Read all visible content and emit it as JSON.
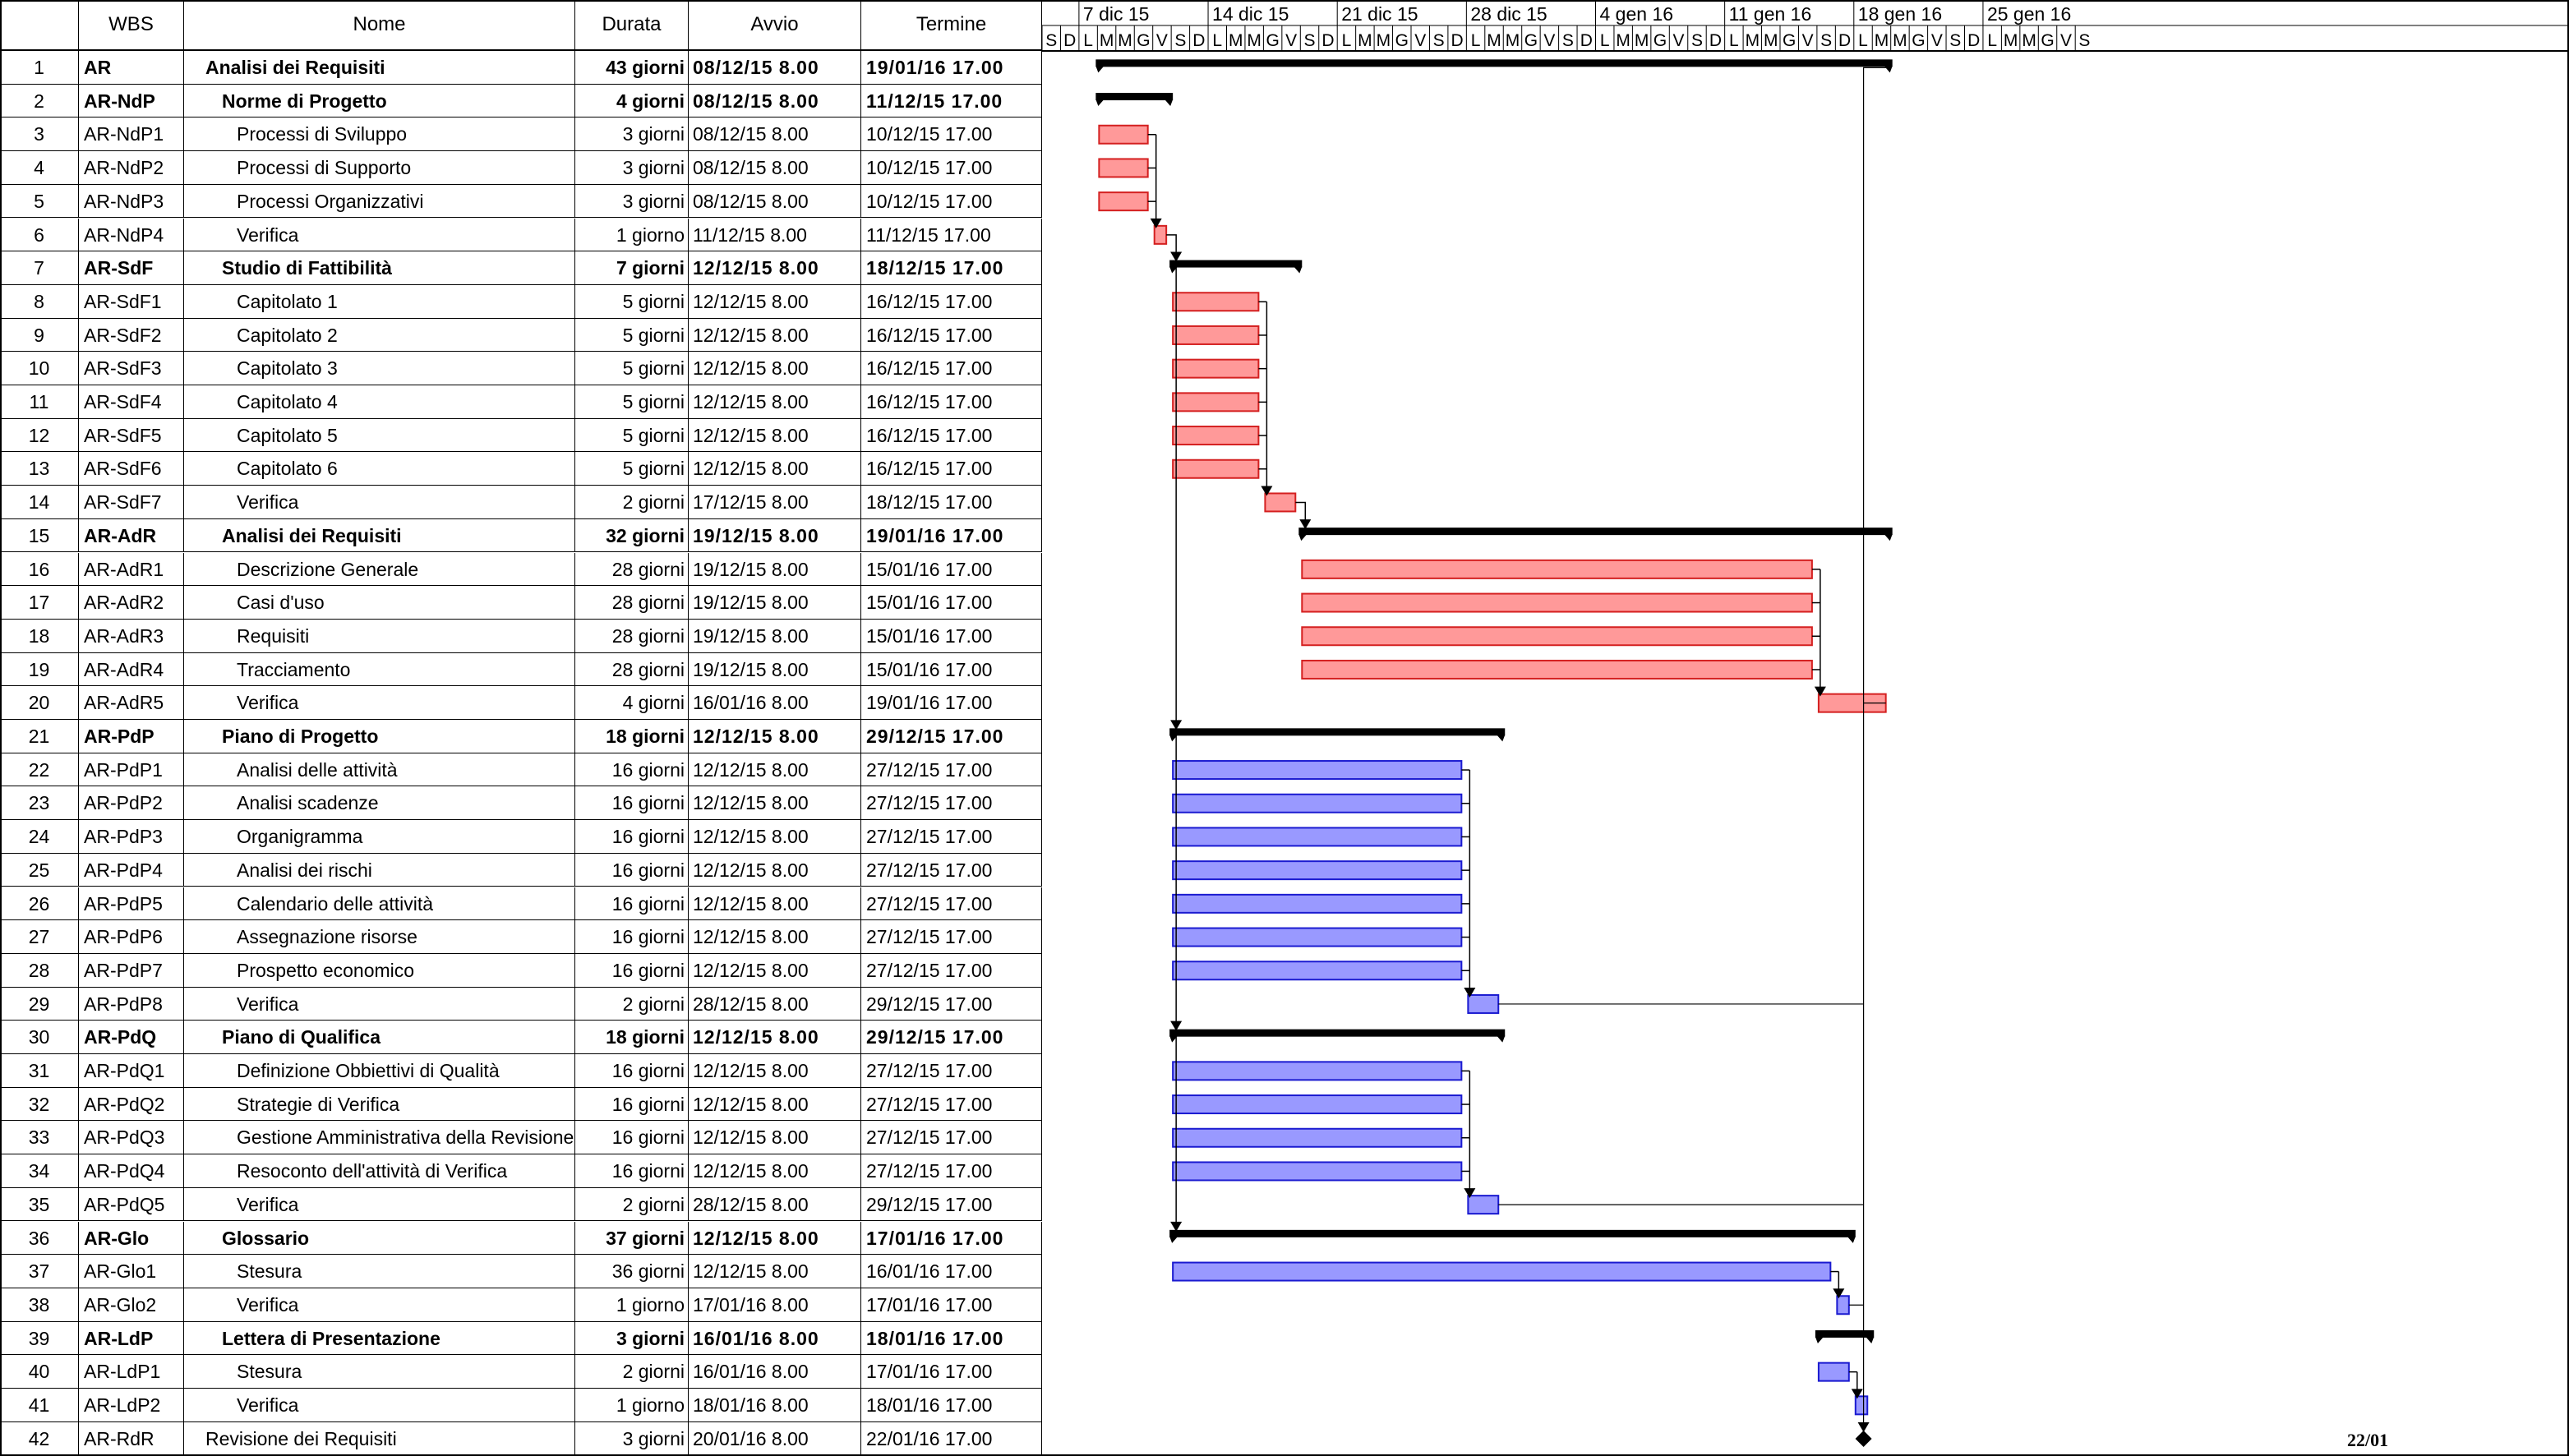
{
  "table": {
    "headers": {
      "num": "",
      "wbs": "WBS",
      "name": "Nome",
      "duration": "Durata",
      "start": "Avvio",
      "end": "Termine"
    },
    "rows": [
      {
        "num": "1",
        "wbs": "AR",
        "name": "Analisi dei Requisiti",
        "dur": "43 giorni",
        "start": "08/12/15 8.00",
        "end": "19/01/16 17.00",
        "summary": true,
        "indent": 0
      },
      {
        "num": "2",
        "wbs": "AR-NdP",
        "name": "Norme di Progetto",
        "dur": "4 giorni",
        "start": "08/12/15 8.00",
        "end": "11/12/15 17.00",
        "summary": true,
        "indent": 1
      },
      {
        "num": "3",
        "wbs": "AR-NdP1",
        "name": "Processi di Sviluppo",
        "dur": "3 giorni",
        "start": "08/12/15 8.00",
        "end": "10/12/15 17.00",
        "summary": false,
        "indent": 2
      },
      {
        "num": "4",
        "wbs": "AR-NdP2",
        "name": "Processi di Supporto",
        "dur": "3 giorni",
        "start": "08/12/15 8.00",
        "end": "10/12/15 17.00",
        "summary": false,
        "indent": 2
      },
      {
        "num": "5",
        "wbs": "AR-NdP3",
        "name": "Processi Organizzativi",
        "dur": "3 giorni",
        "start": "08/12/15 8.00",
        "end": "10/12/15 17.00",
        "summary": false,
        "indent": 2
      },
      {
        "num": "6",
        "wbs": "AR-NdP4",
        "name": "Verifica",
        "dur": "1 giorno",
        "start": "11/12/15 8.00",
        "end": "11/12/15 17.00",
        "summary": false,
        "indent": 2
      },
      {
        "num": "7",
        "wbs": "AR-SdF",
        "name": "Studio di Fattibilità",
        "dur": "7 giorni",
        "start": "12/12/15 8.00",
        "end": "18/12/15 17.00",
        "summary": true,
        "indent": 1
      },
      {
        "num": "8",
        "wbs": "AR-SdF1",
        "name": "Capitolato 1",
        "dur": "5 giorni",
        "start": "12/12/15 8.00",
        "end": "16/12/15 17.00",
        "summary": false,
        "indent": 2
      },
      {
        "num": "9",
        "wbs": "AR-SdF2",
        "name": "Capitolato 2",
        "dur": "5 giorni",
        "start": "12/12/15 8.00",
        "end": "16/12/15 17.00",
        "summary": false,
        "indent": 2
      },
      {
        "num": "10",
        "wbs": "AR-SdF3",
        "name": "Capitolato 3",
        "dur": "5 giorni",
        "start": "12/12/15 8.00",
        "end": "16/12/15 17.00",
        "summary": false,
        "indent": 2
      },
      {
        "num": "11",
        "wbs": "AR-SdF4",
        "name": "Capitolato 4",
        "dur": "5 giorni",
        "start": "12/12/15 8.00",
        "end": "16/12/15 17.00",
        "summary": false,
        "indent": 2
      },
      {
        "num": "12",
        "wbs": "AR-SdF5",
        "name": "Capitolato 5",
        "dur": "5 giorni",
        "start": "12/12/15 8.00",
        "end": "16/12/15 17.00",
        "summary": false,
        "indent": 2
      },
      {
        "num": "13",
        "wbs": "AR-SdF6",
        "name": "Capitolato 6",
        "dur": "5 giorni",
        "start": "12/12/15 8.00",
        "end": "16/12/15 17.00",
        "summary": false,
        "indent": 2
      },
      {
        "num": "14",
        "wbs": "AR-SdF7",
        "name": "Verifica",
        "dur": "2 giorni",
        "start": "17/12/15 8.00",
        "end": "18/12/15 17.00",
        "summary": false,
        "indent": 2
      },
      {
        "num": "15",
        "wbs": "AR-AdR",
        "name": "Analisi dei Requisiti",
        "dur": "32 giorni",
        "start": "19/12/15 8.00",
        "end": "19/01/16 17.00",
        "summary": true,
        "indent": 1
      },
      {
        "num": "16",
        "wbs": "AR-AdR1",
        "name": "Descrizione Generale",
        "dur": "28 giorni",
        "start": "19/12/15 8.00",
        "end": "15/01/16 17.00",
        "summary": false,
        "indent": 2
      },
      {
        "num": "17",
        "wbs": "AR-AdR2",
        "name": "Casi d'uso",
        "dur": "28 giorni",
        "start": "19/12/15 8.00",
        "end": "15/01/16 17.00",
        "summary": false,
        "indent": 2
      },
      {
        "num": "18",
        "wbs": "AR-AdR3",
        "name": "Requisiti",
        "dur": "28 giorni",
        "start": "19/12/15 8.00",
        "end": "15/01/16 17.00",
        "summary": false,
        "indent": 2
      },
      {
        "num": "19",
        "wbs": "AR-AdR4",
        "name": "Tracciamento",
        "dur": "28 giorni",
        "start": "19/12/15 8.00",
        "end": "15/01/16 17.00",
        "summary": false,
        "indent": 2
      },
      {
        "num": "20",
        "wbs": "AR-AdR5",
        "name": "Verifica",
        "dur": "4 giorni",
        "start": "16/01/16 8.00",
        "end": "19/01/16 17.00",
        "summary": false,
        "indent": 2
      },
      {
        "num": "21",
        "wbs": "AR-PdP",
        "name": "Piano di Progetto",
        "dur": "18 giorni",
        "start": "12/12/15 8.00",
        "end": "29/12/15 17.00",
        "summary": true,
        "indent": 1
      },
      {
        "num": "22",
        "wbs": "AR-PdP1",
        "name": "Analisi delle attività",
        "dur": "16 giorni",
        "start": "12/12/15 8.00",
        "end": "27/12/15 17.00",
        "summary": false,
        "indent": 2
      },
      {
        "num": "23",
        "wbs": "AR-PdP2",
        "name": "Analisi scadenze",
        "dur": "16 giorni",
        "start": "12/12/15 8.00",
        "end": "27/12/15 17.00",
        "summary": false,
        "indent": 2
      },
      {
        "num": "24",
        "wbs": "AR-PdP3",
        "name": "Organigramma",
        "dur": "16 giorni",
        "start": "12/12/15 8.00",
        "end": "27/12/15 17.00",
        "summary": false,
        "indent": 2
      },
      {
        "num": "25",
        "wbs": "AR-PdP4",
        "name": "Analisi dei rischi",
        "dur": "16 giorni",
        "start": "12/12/15 8.00",
        "end": "27/12/15 17.00",
        "summary": false,
        "indent": 2
      },
      {
        "num": "26",
        "wbs": "AR-PdP5",
        "name": "Calendario delle attività",
        "dur": "16 giorni",
        "start": "12/12/15 8.00",
        "end": "27/12/15 17.00",
        "summary": false,
        "indent": 2
      },
      {
        "num": "27",
        "wbs": "AR-PdP6",
        "name": "Assegnazione risorse",
        "dur": "16 giorni",
        "start": "12/12/15 8.00",
        "end": "27/12/15 17.00",
        "summary": false,
        "indent": 2
      },
      {
        "num": "28",
        "wbs": "AR-PdP7",
        "name": "Prospetto economico",
        "dur": "16 giorni",
        "start": "12/12/15 8.00",
        "end": "27/12/15 17.00",
        "summary": false,
        "indent": 2
      },
      {
        "num": "29",
        "wbs": "AR-PdP8",
        "name": "Verifica",
        "dur": "2 giorni",
        "start": "28/12/15 8.00",
        "end": "29/12/15 17.00",
        "summary": false,
        "indent": 2
      },
      {
        "num": "30",
        "wbs": "AR-PdQ",
        "name": "Piano di Qualifica",
        "dur": "18 giorni",
        "start": "12/12/15 8.00",
        "end": "29/12/15 17.00",
        "summary": true,
        "indent": 1
      },
      {
        "num": "31",
        "wbs": "AR-PdQ1",
        "name": "Definizione Obbiettivi di Qualità",
        "dur": "16 giorni",
        "start": "12/12/15 8.00",
        "end": "27/12/15 17.00",
        "summary": false,
        "indent": 2
      },
      {
        "num": "32",
        "wbs": "AR-PdQ2",
        "name": "Strategie di Verifica",
        "dur": "16 giorni",
        "start": "12/12/15 8.00",
        "end": "27/12/15 17.00",
        "summary": false,
        "indent": 2
      },
      {
        "num": "33",
        "wbs": "AR-PdQ3",
        "name": "Gestione Amministrativa della Revisione",
        "dur": "16 giorni",
        "start": "12/12/15 8.00",
        "end": "27/12/15 17.00",
        "summary": false,
        "indent": 2
      },
      {
        "num": "34",
        "wbs": "AR-PdQ4",
        "name": "Resoconto dell'attività di Verifica",
        "dur": "16 giorni",
        "start": "12/12/15 8.00",
        "end": "27/12/15 17.00",
        "summary": false,
        "indent": 2
      },
      {
        "num": "35",
        "wbs": "AR-PdQ5",
        "name": "Verifica",
        "dur": "2 giorni",
        "start": "28/12/15 8.00",
        "end": "29/12/15 17.00",
        "summary": false,
        "indent": 2
      },
      {
        "num": "36",
        "wbs": "AR-Glo",
        "name": "Glossario",
        "dur": "37 giorni",
        "start": "12/12/15 8.00",
        "end": "17/01/16 17.00",
        "summary": true,
        "indent": 1
      },
      {
        "num": "37",
        "wbs": "AR-Glo1",
        "name": "Stesura",
        "dur": "36 giorni",
        "start": "12/12/15 8.00",
        "end": "16/01/16 17.00",
        "summary": false,
        "indent": 2
      },
      {
        "num": "38",
        "wbs": "AR-Glo2",
        "name": "Verifica",
        "dur": "1 giorno",
        "start": "17/01/16 8.00",
        "end": "17/01/16 17.00",
        "summary": false,
        "indent": 2
      },
      {
        "num": "39",
        "wbs": "AR-LdP",
        "name": "Lettera di Presentazione",
        "dur": "3 giorni",
        "start": "16/01/16 8.00",
        "end": "18/01/16 17.00",
        "summary": true,
        "indent": 1
      },
      {
        "num": "40",
        "wbs": "AR-LdP1",
        "name": "Stesura",
        "dur": "2 giorni",
        "start": "16/01/16 8.00",
        "end": "17/01/16 17.00",
        "summary": false,
        "indent": 2
      },
      {
        "num": "41",
        "wbs": "AR-LdP2",
        "name": "Verifica",
        "dur": "1 giorno",
        "start": "18/01/16 8.00",
        "end": "18/01/16 17.00",
        "summary": false,
        "indent": 2
      },
      {
        "num": "42",
        "wbs": "AR-RdR",
        "name": "Revisione dei Requisiti",
        "dur": "3 giorni",
        "start": "20/01/16 8.00",
        "end": "22/01/16 17.00",
        "summary": false,
        "indent": 0
      }
    ]
  },
  "timescale": {
    "weeks": [
      "7 dic 15",
      "14 dic 15",
      "21 dic 15",
      "28 dic 15",
      "4 gen 16",
      "11 gen 16",
      "18 gen 16",
      "25 gen 16"
    ],
    "first_day_letters": [
      "S",
      "D"
    ],
    "week_day_letters": [
      "L",
      "M",
      "M",
      "G",
      "V",
      "S",
      "D"
    ],
    "last_day_letters": [
      "L",
      "M",
      "M",
      "G",
      "V",
      "S"
    ]
  },
  "chart_data": {
    "type": "gantt",
    "start_date": "05/12/15",
    "colors": {
      "red_fill": "#ff9999",
      "red_stroke": "#d42020",
      "blue_fill": "#9999ff",
      "blue_stroke": "#1a1ad0",
      "summary": "#000000",
      "link": "#000000"
    },
    "tasks": [
      {
        "row": 1,
        "type": "summary",
        "start": "08/12/15",
        "end": "19/01/16"
      },
      {
        "row": 2,
        "type": "summary",
        "start": "08/12/15",
        "end": "11/12/15"
      },
      {
        "row": 3,
        "type": "task",
        "color": "red",
        "start": "08/12/15",
        "end": "10/12/15"
      },
      {
        "row": 4,
        "type": "task",
        "color": "red",
        "start": "08/12/15",
        "end": "10/12/15"
      },
      {
        "row": 5,
        "type": "task",
        "color": "red",
        "start": "08/12/15",
        "end": "10/12/15"
      },
      {
        "row": 6,
        "type": "task",
        "color": "red",
        "start": "11/12/15",
        "end": "11/12/15"
      },
      {
        "row": 7,
        "type": "summary",
        "start": "12/12/15",
        "end": "18/12/15"
      },
      {
        "row": 8,
        "type": "task",
        "color": "red",
        "start": "12/12/15",
        "end": "16/12/15"
      },
      {
        "row": 9,
        "type": "task",
        "color": "red",
        "start": "12/12/15",
        "end": "16/12/15"
      },
      {
        "row": 10,
        "type": "task",
        "color": "red",
        "start": "12/12/15",
        "end": "16/12/15"
      },
      {
        "row": 11,
        "type": "task",
        "color": "red",
        "start": "12/12/15",
        "end": "16/12/15"
      },
      {
        "row": 12,
        "type": "task",
        "color": "red",
        "start": "12/12/15",
        "end": "16/12/15"
      },
      {
        "row": 13,
        "type": "task",
        "color": "red",
        "start": "12/12/15",
        "end": "16/12/15"
      },
      {
        "row": 14,
        "type": "task",
        "color": "red",
        "start": "17/12/15",
        "end": "18/12/15"
      },
      {
        "row": 15,
        "type": "summary",
        "start": "19/12/15",
        "end": "19/01/16"
      },
      {
        "row": 16,
        "type": "task",
        "color": "red",
        "start": "19/12/15",
        "end": "15/01/16"
      },
      {
        "row": 17,
        "type": "task",
        "color": "red",
        "start": "19/12/15",
        "end": "15/01/16"
      },
      {
        "row": 18,
        "type": "task",
        "color": "red",
        "start": "19/12/15",
        "end": "15/01/16"
      },
      {
        "row": 19,
        "type": "task",
        "color": "red",
        "start": "19/12/15",
        "end": "15/01/16"
      },
      {
        "row": 20,
        "type": "task",
        "color": "red",
        "start": "16/01/16",
        "end": "19/01/16"
      },
      {
        "row": 21,
        "type": "summary",
        "start": "12/12/15",
        "end": "29/12/15"
      },
      {
        "row": 22,
        "type": "task",
        "color": "blue",
        "start": "12/12/15",
        "end": "27/12/15"
      },
      {
        "row": 23,
        "type": "task",
        "color": "blue",
        "start": "12/12/15",
        "end": "27/12/15"
      },
      {
        "row": 24,
        "type": "task",
        "color": "blue",
        "start": "12/12/15",
        "end": "27/12/15"
      },
      {
        "row": 25,
        "type": "task",
        "color": "blue",
        "start": "12/12/15",
        "end": "27/12/15"
      },
      {
        "row": 26,
        "type": "task",
        "color": "blue",
        "start": "12/12/15",
        "end": "27/12/15"
      },
      {
        "row": 27,
        "type": "task",
        "color": "blue",
        "start": "12/12/15",
        "end": "27/12/15"
      },
      {
        "row": 28,
        "type": "task",
        "color": "blue",
        "start": "12/12/15",
        "end": "27/12/15"
      },
      {
        "row": 29,
        "type": "task",
        "color": "blue",
        "start": "28/12/15",
        "end": "29/12/15"
      },
      {
        "row": 30,
        "type": "summary",
        "start": "12/12/15",
        "end": "29/12/15"
      },
      {
        "row": 31,
        "type": "task",
        "color": "blue",
        "start": "12/12/15",
        "end": "27/12/15"
      },
      {
        "row": 32,
        "type": "task",
        "color": "blue",
        "start": "12/12/15",
        "end": "27/12/15"
      },
      {
        "row": 33,
        "type": "task",
        "color": "blue",
        "start": "12/12/15",
        "end": "27/12/15"
      },
      {
        "row": 34,
        "type": "task",
        "color": "blue",
        "start": "12/12/15",
        "end": "27/12/15"
      },
      {
        "row": 35,
        "type": "task",
        "color": "blue",
        "start": "28/12/15",
        "end": "29/12/15"
      },
      {
        "row": 36,
        "type": "summary",
        "start": "12/12/15",
        "end": "17/01/16"
      },
      {
        "row": 37,
        "type": "task",
        "color": "blue",
        "start": "12/12/15",
        "end": "16/01/16"
      },
      {
        "row": 38,
        "type": "task",
        "color": "blue",
        "start": "17/01/16",
        "end": "17/01/16"
      },
      {
        "row": 39,
        "type": "summary",
        "start": "16/01/16",
        "end": "18/01/16"
      },
      {
        "row": 40,
        "type": "task",
        "color": "blue",
        "start": "16/01/16",
        "end": "17/01/16"
      },
      {
        "row": 41,
        "type": "task",
        "color": "blue",
        "start": "18/01/16",
        "end": "18/01/16"
      },
      {
        "row": 42,
        "type": "milestone",
        "date": "22/01/16",
        "label": "22/01"
      }
    ]
  }
}
